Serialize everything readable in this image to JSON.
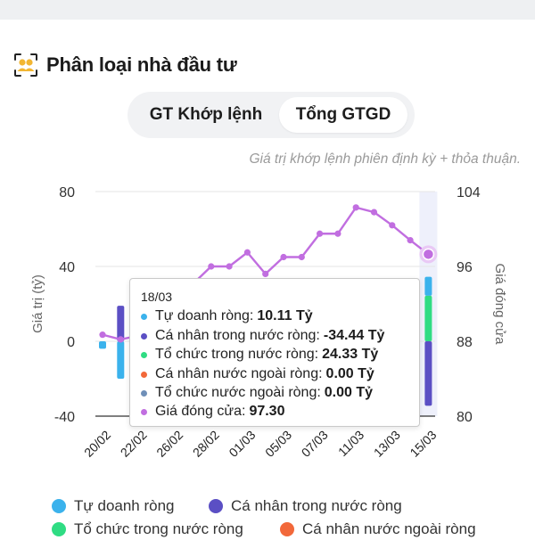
{
  "header": {
    "title": "Phân loại nhà đầu tư",
    "icon": "investor-group-icon"
  },
  "tabs": [
    {
      "label": "GT Khớp lệnh",
      "active": false
    },
    {
      "label": "Tổng GTGD",
      "active": true
    }
  ],
  "note": "Giá trị khớp lệnh phiên định kỳ + thỏa thuận.",
  "colors": {
    "tu_doanh": "#3bb2ec",
    "ca_nhan_trong_nuoc": "#5b4fc4",
    "to_chuc_trong_nuoc": "#2fdc83",
    "ca_nhan_nuoc_ngoai": "#f2683a",
    "to_chuc_nuoc_ngoai": "#6f8fb8",
    "gia_dong_cua": "#c16ee0"
  },
  "chart_data": {
    "type": "bar",
    "ylabel": "Giá trị (tỷ)",
    "y2label": "Giá đóng cửa",
    "ylim": [
      -40,
      80
    ],
    "yticks": [
      "80",
      "40",
      "0",
      "-40"
    ],
    "y2lim": [
      80,
      104
    ],
    "y2ticks": [
      "104",
      "96",
      "88",
      "80"
    ],
    "x_ticks": [
      "20/02",
      "22/02",
      "26/02",
      "28/02",
      "01/03",
      "05/03",
      "07/03",
      "11/03",
      "13/03",
      "15/03"
    ],
    "highlighted": "18/03",
    "bars": [
      {
        "x": 0,
        "series": "tu_doanh",
        "from": 0,
        "to": -4
      },
      {
        "x": 1,
        "series": "ca_nhan_trong_nuoc",
        "from": 0,
        "to": 19
      },
      {
        "x": 1,
        "series": "tu_doanh",
        "from": 0,
        "to": -20
      },
      {
        "x": 18,
        "series": "tu_doanh",
        "from": 24.33,
        "to": 34.44
      },
      {
        "x": 18,
        "series": "to_chuc_trong_nuoc",
        "from": 0,
        "to": 24.33
      },
      {
        "x": 18,
        "series": "ca_nhan_trong_nuoc",
        "from": 0,
        "to": -34.44
      }
    ],
    "price_line": {
      "name": "Giá đóng cửa",
      "x": [
        0,
        1,
        2,
        6,
        7,
        8,
        9,
        10,
        11,
        12,
        13,
        14,
        15,
        16,
        17,
        18
      ],
      "values": [
        88.7,
        88.2,
        88.6,
        96.0,
        96.0,
        97.5,
        95.2,
        97.0,
        97.0,
        99.5,
        99.5,
        102.3,
        101.8,
        100.4,
        98.8,
        97.3
      ]
    }
  },
  "tooltip": {
    "date": "18/03",
    "rows": [
      {
        "key": "tu_doanh",
        "label": "Tự doanh ròng:",
        "value": "10.11 Tỷ"
      },
      {
        "key": "ca_nhan_trong_nuoc",
        "label": "Cá nhân trong nước ròng:",
        "value": "-34.44 Tỷ"
      },
      {
        "key": "to_chuc_trong_nuoc",
        "label": "Tổ chức trong nước ròng:",
        "value": "24.33 Tỷ"
      },
      {
        "key": "ca_nhan_nuoc_ngoai",
        "label": "Cá nhân nước ngoài ròng:",
        "value": "0.00 Tỷ"
      },
      {
        "key": "to_chuc_nuoc_ngoai",
        "label": "Tổ chức nước ngoài ròng:",
        "value": "0.00 Tỷ"
      },
      {
        "key": "gia_dong_cua",
        "label": "Giá đóng cửa:",
        "value": "97.30"
      }
    ]
  },
  "legend": [
    {
      "key": "tu_doanh",
      "label": "Tự doanh ròng"
    },
    {
      "key": "ca_nhan_trong_nuoc",
      "label": "Cá nhân trong nước ròng"
    },
    {
      "key": "to_chuc_trong_nuoc",
      "label": "Tổ chức trong nước ròng"
    },
    {
      "key": "ca_nhan_nuoc_ngoai",
      "label": "Cá nhân nước ngoài ròng"
    }
  ]
}
